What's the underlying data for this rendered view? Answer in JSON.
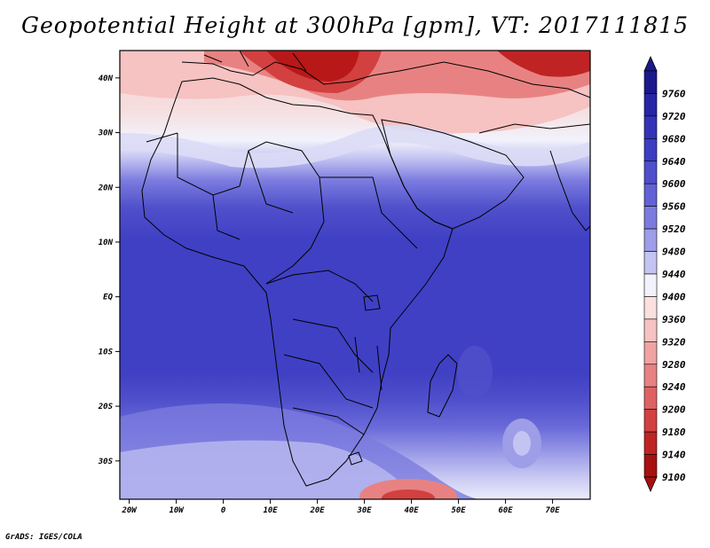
{
  "title": "Geopotential Height at 300hPa [gpm], VT: 2017111815",
  "credit": "GrADS: IGES/COLA",
  "map": {
    "lat_ticks": [
      "40N",
      "30N",
      "20N",
      "10N",
      "EQ",
      "10S",
      "20S",
      "30S"
    ],
    "lon_ticks": [
      "20W",
      "10W",
      "0",
      "10E",
      "20E",
      "30E",
      "40E",
      "50E",
      "60E",
      "70E"
    ],
    "lon_range": [
      -22,
      78
    ],
    "lat_range": [
      -37,
      45
    ]
  },
  "colorbar": {
    "levels": [
      "9760",
      "9720",
      "9680",
      "9640",
      "9600",
      "9560",
      "9520",
      "9480",
      "9440",
      "9400",
      "9360",
      "9320",
      "9280",
      "9240",
      "9200",
      "9180",
      "9140",
      "9100"
    ],
    "colors": [
      "#1a1a8c",
      "#2626a6",
      "#3333b8",
      "#3d3dc4",
      "#4f4fcc",
      "#6262d6",
      "#7b7bdf",
      "#9d9de8",
      "#c4c4f2",
      "#f2f2fc",
      "#fbe0e0",
      "#f6c2c2",
      "#f0a3a3",
      "#e88282",
      "#df6262",
      "#d24040",
      "#c02323",
      "#a81010"
    ]
  }
}
